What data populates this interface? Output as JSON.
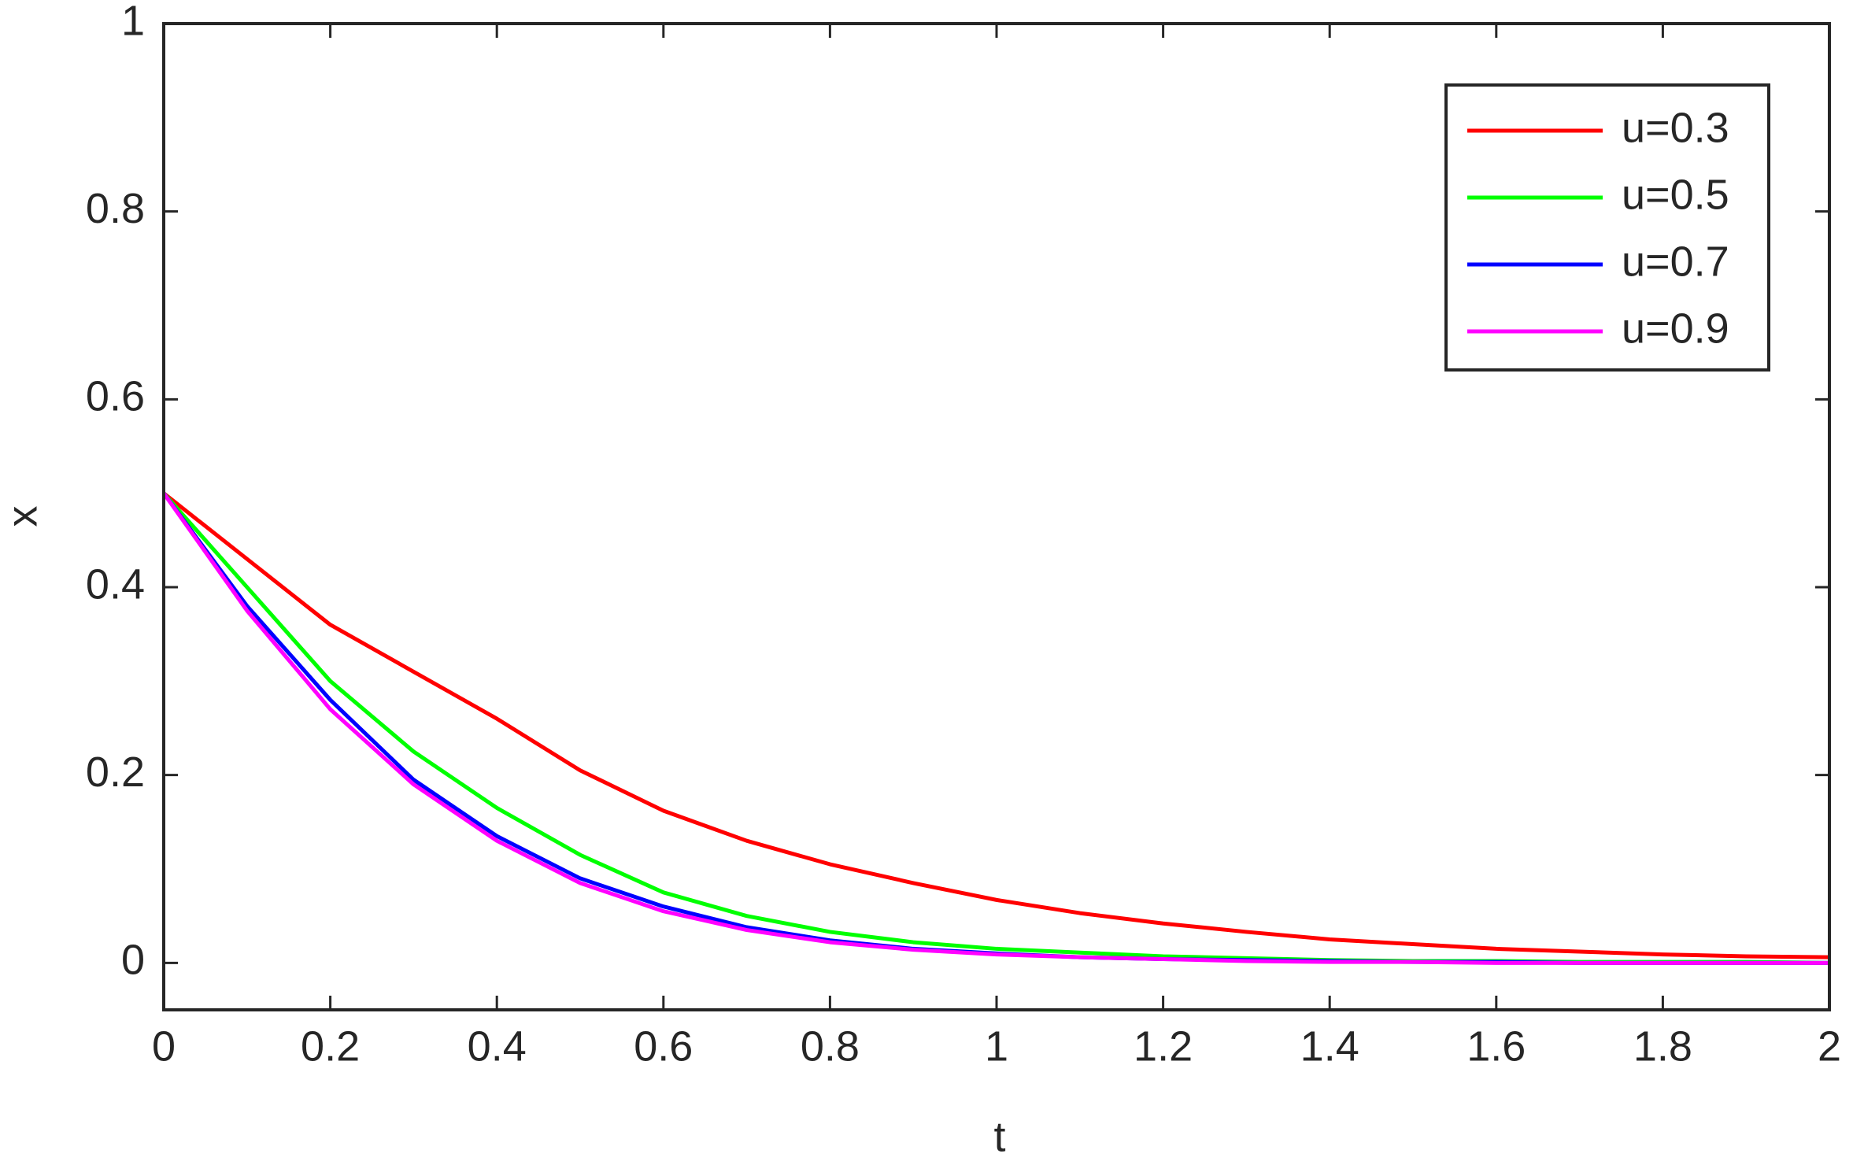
{
  "chart_data": {
    "type": "line",
    "xlabel": "t",
    "ylabel": "x",
    "x": [
      0,
      0.1,
      0.2,
      0.3,
      0.4,
      0.5,
      0.6,
      0.7,
      0.8,
      0.9,
      1,
      1.1,
      1.2,
      1.3,
      1.4,
      1.5,
      1.6,
      1.7,
      1.8,
      1.9,
      2
    ],
    "series": [
      {
        "name": "u=0.3",
        "color": "#ff0000",
        "values": [
          0.5,
          0.43,
          0.36,
          0.31,
          0.26,
          0.205,
          0.162,
          0.13,
          0.105,
          0.085,
          0.067,
          0.053,
          0.042,
          0.033,
          0.025,
          0.02,
          0.015,
          0.012,
          0.009,
          0.007,
          0.006
        ]
      },
      {
        "name": "u=0.5",
        "color": "#00ff00",
        "values": [
          0.5,
          0.4,
          0.3,
          0.225,
          0.165,
          0.115,
          0.075,
          0.05,
          0.033,
          0.022,
          0.015,
          0.011,
          0.007,
          0.005,
          0.003,
          0.002,
          0.002,
          0.001,
          0.001,
          0.001,
          0
        ]
      },
      {
        "name": "u=0.7",
        "color": "#0000ff",
        "values": [
          0.5,
          0.38,
          0.28,
          0.195,
          0.135,
          0.09,
          0.06,
          0.038,
          0.024,
          0.015,
          0.01,
          0.006,
          0.004,
          0.003,
          0.002,
          0.001,
          0.001,
          0,
          0,
          0,
          0
        ]
      },
      {
        "name": "u=0.9",
        "color": "#ff00ff",
        "values": [
          0.5,
          0.375,
          0.27,
          0.19,
          0.13,
          0.085,
          0.055,
          0.035,
          0.022,
          0.014,
          0.009,
          0.006,
          0.004,
          0.002,
          0.001,
          0.001,
          0,
          0,
          0,
          0,
          0
        ]
      }
    ],
    "xlim": [
      0,
      2
    ],
    "ylim": [
      -0.05,
      1
    ],
    "xticks": [
      0,
      0.2,
      0.4,
      0.6,
      0.8,
      1,
      1.2,
      1.4,
      1.6,
      1.8,
      2
    ],
    "yticks": [
      0,
      0.2,
      0.4,
      0.6,
      0.8,
      1
    ],
    "grid": false,
    "legend": "upper right"
  }
}
